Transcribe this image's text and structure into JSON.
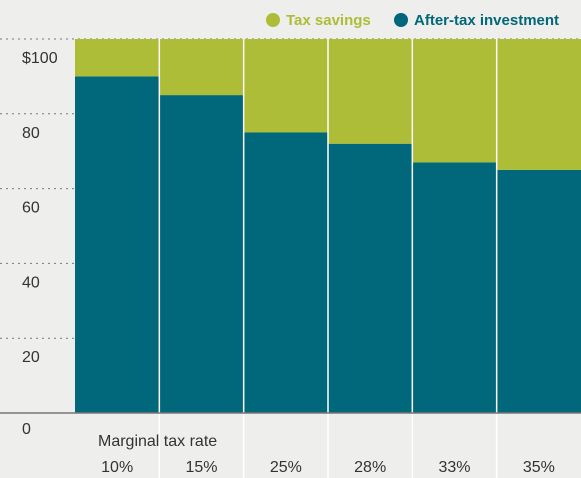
{
  "chart_data": {
    "type": "bar",
    "stacked": true,
    "title": "",
    "xlabel": "Marginal tax rate",
    "ylabel": "",
    "categories": [
      "10%",
      "15%",
      "25%",
      "28%",
      "33%",
      "35%"
    ],
    "series": [
      {
        "name": "After-tax investment",
        "values": [
          90,
          85,
          75,
          72,
          67,
          65
        ]
      },
      {
        "name": "Tax savings",
        "values": [
          10,
          15,
          25,
          28,
          33,
          35
        ]
      }
    ],
    "ylim": [
      0,
      100
    ],
    "yticks": [
      "0",
      "20",
      "40",
      "60",
      "80",
      "$100"
    ],
    "grid": "dotted",
    "legend": "top-right"
  },
  "colors": {
    "after_tax": "#00687a",
    "tax_savings": "#adbd37",
    "panel": "#eeeeec",
    "grid": "#777777"
  }
}
